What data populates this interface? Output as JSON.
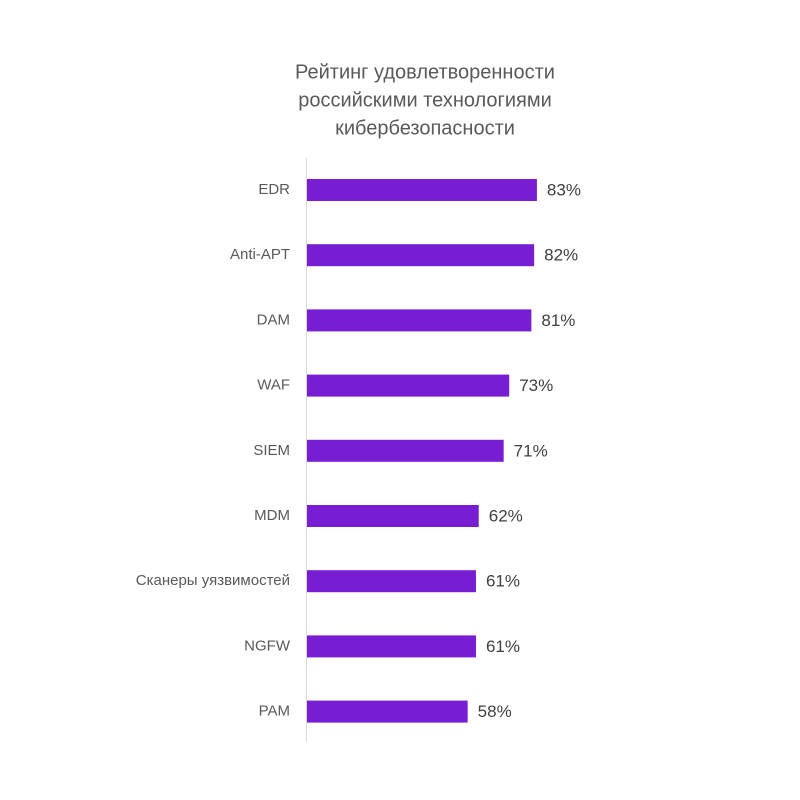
{
  "chart_data": {
    "type": "bar",
    "orientation": "horizontal",
    "title": [
      "Рейтинг удовлетворенности",
      "российскими технологиями",
      "кибербезопасности"
    ],
    "categories": [
      "EDR",
      "Anti-APT",
      "DAM",
      "WAF",
      "SIEM",
      "MDM",
      "Сканеры уязвимостей",
      "NGFW",
      "PAM"
    ],
    "values": [
      83,
      82,
      81,
      73,
      71,
      62,
      61,
      61,
      58
    ],
    "value_labels": [
      "83%",
      "82%",
      "81%",
      "73%",
      "71%",
      "62%",
      "61%",
      "61%",
      "58%"
    ],
    "color": "#781ed2",
    "xlim": [
      0,
      100
    ]
  }
}
